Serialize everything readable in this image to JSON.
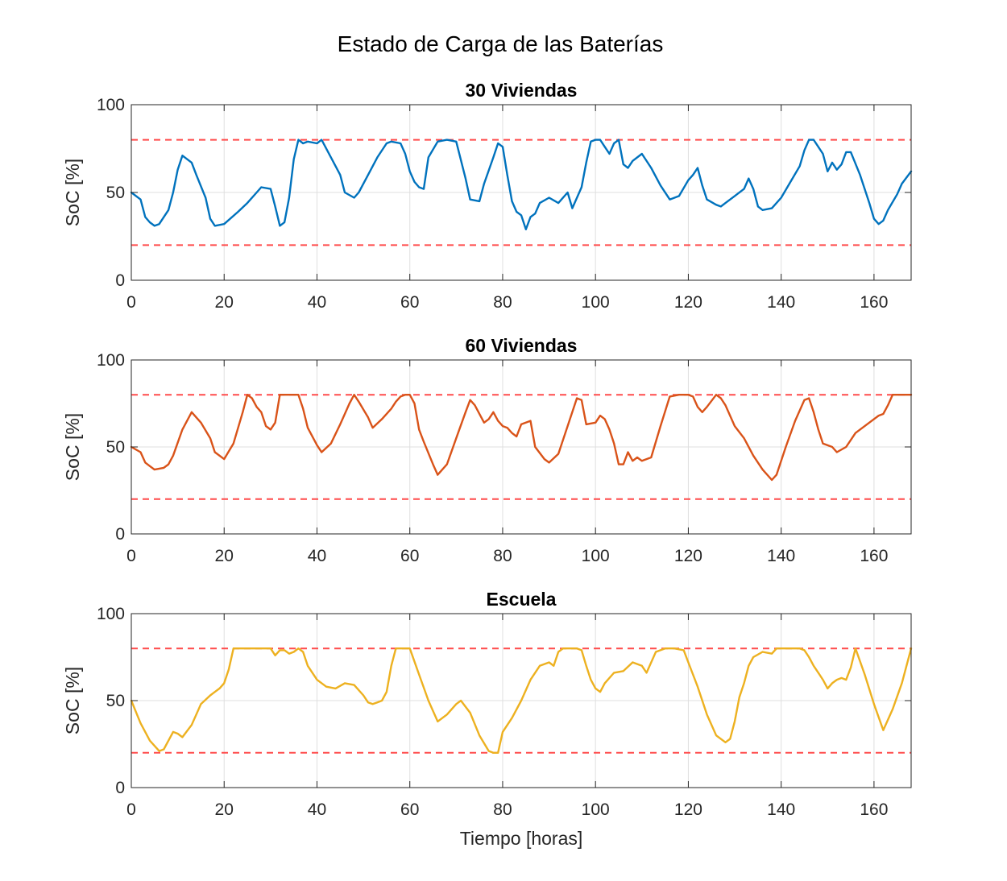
{
  "figure": {
    "title": "Estado de Carga de las Baterías",
    "xlabel": "Tiempo [horas]"
  },
  "colors": {
    "grid": "#dfdfdf",
    "axis": "#262626",
    "limit": "#ff4b4b"
  },
  "chart_data": [
    {
      "type": "line",
      "title": "30 Viviendas",
      "xlabel": "",
      "ylabel": "SoC [%]",
      "xlim": [
        0,
        168
      ],
      "ylim": [
        0,
        100
      ],
      "xticks": [
        0,
        20,
        40,
        60,
        80,
        100,
        120,
        140,
        160
      ],
      "yticks": [
        0,
        50,
        100
      ],
      "grid": true,
      "color": "#0072bd",
      "reference_lines": [
        80,
        20
      ],
      "x": [
        0,
        2,
        3,
        4,
        5,
        6,
        8,
        9,
        10,
        11,
        13,
        14,
        16,
        17,
        18,
        20,
        23,
        25,
        27,
        28,
        30,
        31,
        32,
        33,
        34,
        35,
        36,
        37,
        38,
        40,
        41,
        43,
        45,
        46,
        48,
        49,
        51,
        53,
        55,
        56,
        58,
        59,
        60,
        61,
        62,
        63,
        64,
        66,
        68,
        70,
        72,
        73,
        75,
        76,
        78,
        79,
        80,
        81,
        82,
        83,
        84,
        85,
        86,
        87,
        88,
        90,
        92,
        94,
        95,
        97,
        98,
        99,
        100,
        101,
        102,
        103,
        104,
        105,
        106,
        107,
        108,
        110,
        112,
        114,
        116,
        118,
        120,
        121,
        122,
        123,
        124,
        126,
        127,
        128,
        130,
        132,
        133,
        134,
        135,
        136,
        138,
        140,
        142,
        144,
        145,
        146,
        147,
        149,
        150,
        151,
        152,
        153,
        154,
        155,
        157,
        159,
        160,
        161,
        162,
        163,
        165,
        166,
        168
      ],
      "y": [
        50,
        46,
        36,
        33,
        31,
        32,
        40,
        50,
        63,
        71,
        67,
        60,
        47,
        35,
        31,
        32,
        39,
        44,
        50,
        53,
        52,
        42,
        31,
        33,
        47,
        69,
        80,
        78,
        79,
        78,
        80,
        70,
        60,
        50,
        47,
        50,
        60,
        70,
        78,
        79,
        78,
        72,
        62,
        56,
        53,
        52,
        70,
        79,
        80,
        79,
        58,
        46,
        45,
        55,
        70,
        78,
        76,
        60,
        45,
        39,
        37,
        29,
        36,
        38,
        44,
        47,
        44,
        50,
        41,
        53,
        67,
        79,
        80,
        80,
        76,
        72,
        78,
        80,
        66,
        64,
        68,
        72,
        64,
        54,
        46,
        48,
        57,
        60,
        64,
        54,
        46,
        43,
        42,
        44,
        48,
        52,
        58,
        52,
        42,
        40,
        41,
        47,
        56,
        65,
        74,
        80,
        80,
        72,
        62,
        67,
        63,
        66,
        73,
        73,
        60,
        44,
        35,
        32,
        34,
        40,
        49,
        55,
        62
      ]
    },
    {
      "type": "line",
      "title": "60 Viviendas",
      "xlabel": "",
      "ylabel": "SoC [%]",
      "xlim": [
        0,
        168
      ],
      "ylim": [
        0,
        100
      ],
      "xticks": [
        0,
        20,
        40,
        60,
        80,
        100,
        120,
        140,
        160
      ],
      "yticks": [
        0,
        50,
        100
      ],
      "grid": true,
      "color": "#d95319",
      "reference_lines": [
        80,
        20
      ],
      "x": [
        0,
        2,
        3,
        4,
        5,
        7,
        8,
        9,
        11,
        13,
        15,
        17,
        18,
        20,
        22,
        24,
        25,
        26,
        27,
        28,
        29,
        30,
        31,
        32,
        34,
        35,
        36,
        37,
        38,
        40,
        41,
        43,
        45,
        47,
        48,
        49,
        51,
        52,
        54,
        56,
        57,
        58,
        59,
        60,
        61,
        62,
        63,
        65,
        66,
        68,
        70,
        72,
        73,
        74,
        76,
        77,
        78,
        79,
        80,
        81,
        82,
        83,
        84,
        86,
        87,
        89,
        90,
        92,
        94,
        96,
        97,
        98,
        100,
        101,
        102,
        103,
        104,
        105,
        106,
        107,
        108,
        109,
        110,
        112,
        114,
        116,
        118,
        119,
        120,
        121,
        122,
        123,
        124,
        126,
        127,
        128,
        130,
        132,
        134,
        136,
        138,
        139,
        141,
        143,
        145,
        146,
        147,
        148,
        149,
        151,
        152,
        154,
        156,
        158,
        160,
        161,
        162,
        163,
        164,
        165,
        166,
        168
      ],
      "y": [
        50,
        47,
        41,
        39,
        37,
        38,
        40,
        45,
        60,
        70,
        64,
        55,
        47,
        43,
        52,
        70,
        80,
        78,
        73,
        70,
        62,
        60,
        64,
        80,
        80,
        80,
        80,
        72,
        61,
        51,
        47,
        52,
        63,
        75,
        80,
        76,
        67,
        61,
        66,
        72,
        76,
        79,
        80,
        80,
        75,
        60,
        53,
        40,
        34,
        40,
        55,
        70,
        77,
        74,
        64,
        66,
        70,
        65,
        62,
        61,
        58,
        56,
        63,
        65,
        50,
        43,
        41,
        46,
        62,
        78,
        77,
        63,
        64,
        68,
        66,
        60,
        52,
        40,
        40,
        47,
        42,
        44,
        42,
        44,
        62,
        79,
        80,
        80,
        80,
        79,
        73,
        70,
        73,
        80,
        78,
        74,
        62,
        55,
        45,
        37,
        31,
        34,
        50,
        65,
        77,
        78,
        70,
        60,
        52,
        50,
        47,
        50,
        58,
        62,
        66,
        68,
        69,
        74,
        80,
        80,
        80,
        80
      ]
    },
    {
      "type": "line",
      "title": "Escuela",
      "xlabel": "Tiempo [horas]",
      "ylabel": "SoC [%]",
      "xlim": [
        0,
        168
      ],
      "ylim": [
        0,
        100
      ],
      "xticks": [
        0,
        20,
        40,
        60,
        80,
        100,
        120,
        140,
        160
      ],
      "yticks": [
        0,
        50,
        100
      ],
      "grid": true,
      "color": "#edb120",
      "reference_lines": [
        80,
        20
      ],
      "x": [
        0,
        2,
        4,
        6,
        7,
        8,
        9,
        10,
        11,
        13,
        15,
        17,
        18,
        19,
        20,
        21,
        22,
        30,
        31,
        32,
        33,
        34,
        35,
        36,
        37,
        38,
        40,
        42,
        44,
        46,
        48,
        50,
        51,
        52,
        53,
        54,
        55,
        56,
        57,
        59,
        60,
        62,
        64,
        66,
        68,
        70,
        71,
        73,
        75,
        77,
        78,
        79,
        80,
        82,
        84,
        86,
        88,
        90,
        91,
        92,
        93,
        96,
        97,
        98,
        99,
        100,
        101,
        102,
        104,
        106,
        108,
        110,
        111,
        113,
        115,
        117,
        119,
        120,
        122,
        124,
        126,
        128,
        129,
        130,
        131,
        132,
        133,
        134,
        136,
        138,
        139,
        140,
        141,
        142,
        143,
        144,
        145,
        146,
        147,
        148,
        149,
        150,
        151,
        152,
        153,
        154,
        155,
        156,
        158,
        160,
        162,
        164,
        166,
        168
      ],
      "y": [
        50,
        37,
        27,
        21,
        22,
        27,
        32,
        31,
        29,
        36,
        48,
        53,
        55,
        57,
        60,
        68,
        80,
        80,
        76,
        79,
        79,
        77,
        78,
        80,
        78,
        70,
        62,
        58,
        57,
        60,
        59,
        53,
        49,
        48,
        49,
        50,
        55,
        70,
        80,
        80,
        80,
        65,
        50,
        38,
        42,
        48,
        50,
        43,
        30,
        21,
        20,
        20,
        32,
        40,
        50,
        62,
        70,
        72,
        70,
        78,
        80,
        80,
        79,
        70,
        62,
        57,
        55,
        60,
        66,
        67,
        72,
        70,
        66,
        78,
        80,
        80,
        79,
        72,
        58,
        42,
        30,
        26,
        28,
        38,
        52,
        60,
        70,
        75,
        78,
        77,
        80,
        80,
        80,
        80,
        80,
        80,
        79,
        75,
        70,
        66,
        62,
        57,
        60,
        62,
        63,
        62,
        69,
        80,
        65,
        48,
        33,
        45,
        60,
        80
      ]
    }
  ]
}
